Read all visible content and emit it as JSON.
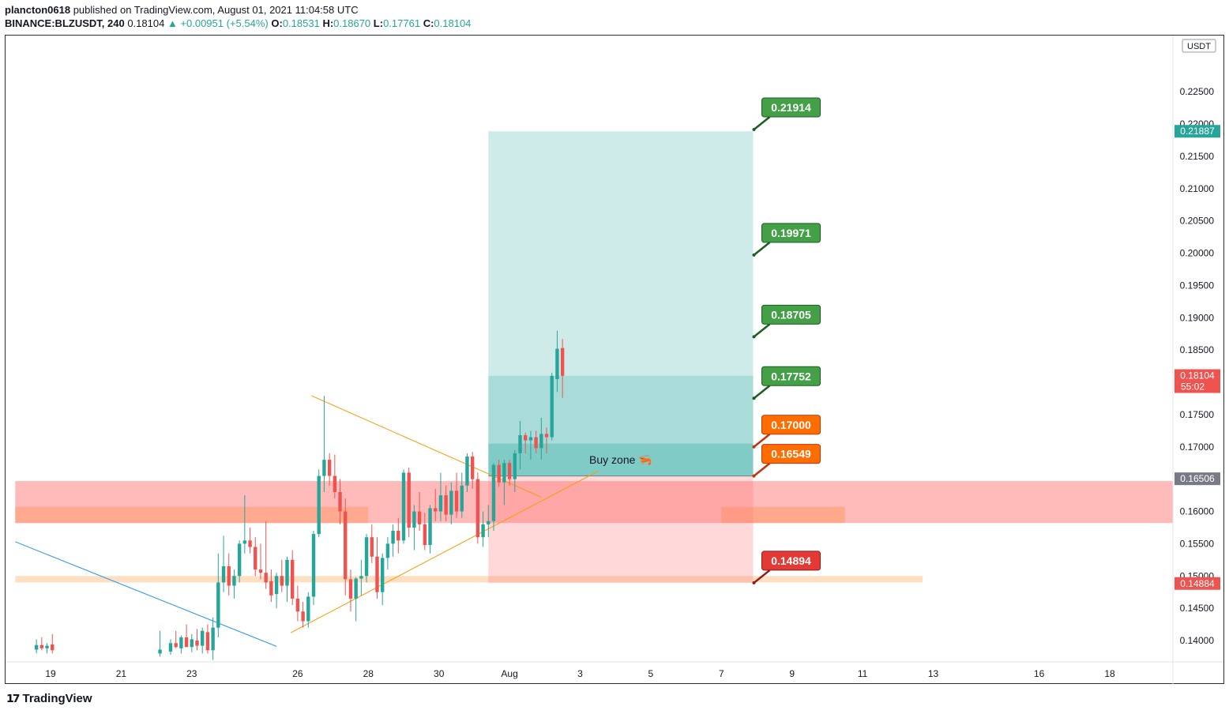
{
  "header": {
    "user": "plancton0618",
    "published": " published on TradingView.com, August 01, 2021 11:04:58 UTC",
    "symbol": "BINANCE:BLZUSDT, 240",
    "last": "0.18104",
    "change": "▲ +0.00951 (+5.54%)",
    "o_label": "O:",
    "o_value": "0.18531",
    "h_label": "H:",
    "h_value": "0.18670",
    "l_label": "L:",
    "l_value": "0.17761",
    "c_label": "C:",
    "c_value": "0.18104"
  },
  "footer": {
    "brand": "TradingView",
    "logo_icon": "tradingview-logo-icon"
  },
  "colors": {
    "up": "#26a69a",
    "down": "#ef5350",
    "target": "#43a047",
    "entry": "#ff6d00",
    "stop": "#e53935",
    "triangle": "#ff9800",
    "trend": "#2196f3"
  },
  "chart_data": {
    "type": "candlestick",
    "currency": "USDT",
    "x_ticks": [
      "19",
      "21",
      "23",
      "26",
      "28",
      "30",
      "Aug",
      "3",
      "5",
      "7",
      "9",
      "11",
      "13",
      "16",
      "18"
    ],
    "x_tick_days": [
      19,
      21,
      23,
      26,
      28,
      30,
      32,
      34,
      36,
      38,
      40,
      42,
      44,
      47,
      49
    ],
    "y_ticks": [
      "0.14000",
      "0.14500",
      "0.15000",
      "0.15500",
      "0.16000",
      "0.16500",
      "0.17000",
      "0.17500",
      "0.18000",
      "0.18500",
      "0.19000",
      "0.19500",
      "0.20000",
      "0.20500",
      "0.21000",
      "0.21500",
      "0.22000",
      "0.22500"
    ],
    "ylim": [
      0.1367,
      0.2337
    ],
    "price_labels": [
      {
        "text": "0.21887",
        "price": 0.21887,
        "color": "#26a69a"
      },
      {
        "text": "0.18104",
        "sub": "55:02",
        "price": 0.18104,
        "color": "#ef5350"
      },
      {
        "text": "0.16506",
        "price": 0.16506,
        "color": "#787b86"
      },
      {
        "text": "0.14884",
        "price": 0.14884,
        "color": "#ef5350"
      }
    ],
    "level_callouts": [
      {
        "text": "0.21914",
        "price": 0.21914,
        "kind": "target"
      },
      {
        "text": "0.19971",
        "price": 0.19971,
        "kind": "target"
      },
      {
        "text": "0.18705",
        "price": 0.18705,
        "kind": "target"
      },
      {
        "text": "0.17752",
        "price": 0.17752,
        "kind": "target"
      },
      {
        "text": "0.17000",
        "price": 0.17,
        "kind": "entry"
      },
      {
        "text": "0.16549",
        "price": 0.16549,
        "kind": "entry"
      },
      {
        "text": "0.14894",
        "price": 0.14894,
        "kind": "stop"
      }
    ],
    "buy_zone": {
      "label": "Buy zone 🦐",
      "from": 0.16549,
      "to": 0.1705
    },
    "zones": [
      {
        "name": "support-zone",
        "from": 0.1582,
        "to": 0.1647,
        "x0": 18.0,
        "x1": 51.4,
        "color": "rgba(255,118,118,0.5)"
      },
      {
        "name": "support-core",
        "from": 0.1582,
        "to": 0.1607,
        "x0": 18.0,
        "x1": 28.0,
        "color": "rgba(255,153,102,0.5)"
      },
      {
        "name": "support-core-ext",
        "from": 0.1582,
        "to": 0.1607,
        "x0": 38.0,
        "x1": 41.5,
        "color": "rgba(255,153,102,0.55)"
      },
      {
        "name": "low-zone",
        "from": 0.149,
        "to": 0.15,
        "x0": 18.0,
        "x1": 43.7,
        "color": "rgba(255,183,120,0.45)"
      }
    ],
    "position": {
      "x0": 31.4,
      "x1": 38.9,
      "entry": 0.16549,
      "target": 0.21887,
      "stop": 0.14894,
      "mid_band_top": 0.181
    },
    "trendlines": [
      {
        "name": "triangle-upper",
        "x": [
          26.4,
          32.9
        ],
        "y": [
          0.1779,
          0.1622
        ],
        "color": "#ff9800"
      },
      {
        "name": "triangle-lower",
        "x": [
          25.8,
          34.5
        ],
        "y": [
          0.1412,
          0.1662
        ],
        "color": "#ff9800"
      },
      {
        "name": "downtrend",
        "x": [
          18.0,
          25.4
        ],
        "y": [
          0.1553,
          0.1391
        ],
        "color": "#2196f3"
      }
    ],
    "candles": [
      {
        "x": 18.6,
        "o": 0.1386,
        "h": 0.1402,
        "l": 0.138,
        "c": 0.1393
      },
      {
        "x": 18.75,
        "o": 0.1393,
        "h": 0.1405,
        "l": 0.1385,
        "c": 0.1388
      },
      {
        "x": 18.9,
        "o": 0.1388,
        "h": 0.1396,
        "l": 0.138,
        "c": 0.1392
      },
      {
        "x": 19.05,
        "o": 0.1394,
        "h": 0.141,
        "l": 0.138,
        "c": 0.1385
      },
      {
        "x": 22.1,
        "o": 0.138,
        "h": 0.1415,
        "l": 0.1375,
        "c": 0.1386
      },
      {
        "x": 22.4,
        "o": 0.1383,
        "h": 0.1402,
        "l": 0.1378,
        "c": 0.1396
      },
      {
        "x": 22.55,
        "o": 0.1396,
        "h": 0.1415,
        "l": 0.1388,
        "c": 0.139
      },
      {
        "x": 22.7,
        "o": 0.1388,
        "h": 0.1408,
        "l": 0.138,
        "c": 0.1405
      },
      {
        "x": 22.85,
        "o": 0.1405,
        "h": 0.1425,
        "l": 0.1395,
        "c": 0.139
      },
      {
        "x": 23.0,
        "o": 0.139,
        "h": 0.141,
        "l": 0.1382,
        "c": 0.1402
      },
      {
        "x": 23.15,
        "o": 0.14,
        "h": 0.1418,
        "l": 0.1385,
        "c": 0.1392
      },
      {
        "x": 23.3,
        "o": 0.1392,
        "h": 0.142,
        "l": 0.138,
        "c": 0.1415
      },
      {
        "x": 23.45,
        "o": 0.1413,
        "h": 0.1425,
        "l": 0.138,
        "c": 0.1385
      },
      {
        "x": 23.6,
        "o": 0.1385,
        "h": 0.1436,
        "l": 0.137,
        "c": 0.142
      },
      {
        "x": 23.75,
        "o": 0.142,
        "h": 0.1535,
        "l": 0.1405,
        "c": 0.149
      },
      {
        "x": 23.9,
        "o": 0.149,
        "h": 0.1562,
        "l": 0.1475,
        "c": 0.1515
      },
      {
        "x": 24.05,
        "o": 0.1515,
        "h": 0.1535,
        "l": 0.147,
        "c": 0.1485
      },
      {
        "x": 24.2,
        "o": 0.1485,
        "h": 0.151,
        "l": 0.1465,
        "c": 0.15
      },
      {
        "x": 24.35,
        "o": 0.15,
        "h": 0.1555,
        "l": 0.149,
        "c": 0.155
      },
      {
        "x": 24.5,
        "o": 0.155,
        "h": 0.1625,
        "l": 0.1535,
        "c": 0.1555
      },
      {
        "x": 24.65,
        "o": 0.1555,
        "h": 0.1575,
        "l": 0.1535,
        "c": 0.1545
      },
      {
        "x": 24.8,
        "o": 0.1545,
        "h": 0.156,
        "l": 0.15,
        "c": 0.151
      },
      {
        "x": 24.95,
        "o": 0.151,
        "h": 0.155,
        "l": 0.1495,
        "c": 0.1505
      },
      {
        "x": 25.1,
        "o": 0.1505,
        "h": 0.1585,
        "l": 0.148,
        "c": 0.149
      },
      {
        "x": 25.25,
        "o": 0.1492,
        "h": 0.151,
        "l": 0.146,
        "c": 0.147
      },
      {
        "x": 25.4,
        "o": 0.1472,
        "h": 0.1505,
        "l": 0.145,
        "c": 0.15
      },
      {
        "x": 25.55,
        "o": 0.15,
        "h": 0.1525,
        "l": 0.1475,
        "c": 0.1485
      },
      {
        "x": 25.7,
        "o": 0.1485,
        "h": 0.153,
        "l": 0.146,
        "c": 0.1525
      },
      {
        "x": 25.85,
        "o": 0.1525,
        "h": 0.154,
        "l": 0.1455,
        "c": 0.1465
      },
      {
        "x": 26.0,
        "o": 0.1465,
        "h": 0.1485,
        "l": 0.143,
        "c": 0.1445
      },
      {
        "x": 26.15,
        "o": 0.1445,
        "h": 0.146,
        "l": 0.142,
        "c": 0.143
      },
      {
        "x": 26.3,
        "o": 0.143,
        "h": 0.1475,
        "l": 0.142,
        "c": 0.1468
      },
      {
        "x": 26.45,
        "o": 0.1468,
        "h": 0.157,
        "l": 0.1455,
        "c": 0.1565
      },
      {
        "x": 26.6,
        "o": 0.1565,
        "h": 0.1665,
        "l": 0.156,
        "c": 0.1655
      },
      {
        "x": 26.75,
        "o": 0.1655,
        "h": 0.1779,
        "l": 0.163,
        "c": 0.168
      },
      {
        "x": 26.9,
        "o": 0.168,
        "h": 0.169,
        "l": 0.164,
        "c": 0.1655
      },
      {
        "x": 27.05,
        "o": 0.1655,
        "h": 0.1688,
        "l": 0.162,
        "c": 0.163
      },
      {
        "x": 27.2,
        "o": 0.163,
        "h": 0.165,
        "l": 0.158,
        "c": 0.16
      },
      {
        "x": 27.35,
        "o": 0.16,
        "h": 0.162,
        "l": 0.147,
        "c": 0.1495
      },
      {
        "x": 27.5,
        "o": 0.1495,
        "h": 0.151,
        "l": 0.1445,
        "c": 0.1465
      },
      {
        "x": 27.65,
        "o": 0.1465,
        "h": 0.1498,
        "l": 0.143,
        "c": 0.1496
      },
      {
        "x": 27.8,
        "o": 0.1496,
        "h": 0.1525,
        "l": 0.147,
        "c": 0.15
      },
      {
        "x": 27.95,
        "o": 0.15,
        "h": 0.1565,
        "l": 0.149,
        "c": 0.156
      },
      {
        "x": 28.1,
        "o": 0.156,
        "h": 0.158,
        "l": 0.152,
        "c": 0.153
      },
      {
        "x": 28.25,
        "o": 0.153,
        "h": 0.156,
        "l": 0.1465,
        "c": 0.1475
      },
      {
        "x": 28.4,
        "o": 0.1475,
        "h": 0.1535,
        "l": 0.1455,
        "c": 0.1528
      },
      {
        "x": 28.55,
        "o": 0.1528,
        "h": 0.156,
        "l": 0.151,
        "c": 0.155
      },
      {
        "x": 28.7,
        "o": 0.155,
        "h": 0.158,
        "l": 0.153,
        "c": 0.157
      },
      {
        "x": 28.85,
        "o": 0.157,
        "h": 0.159,
        "l": 0.1535,
        "c": 0.1555
      },
      {
        "x": 29.0,
        "o": 0.1555,
        "h": 0.1665,
        "l": 0.155,
        "c": 0.166
      },
      {
        "x": 29.15,
        "o": 0.166,
        "h": 0.1668,
        "l": 0.156,
        "c": 0.1575
      },
      {
        "x": 29.3,
        "o": 0.1575,
        "h": 0.161,
        "l": 0.154,
        "c": 0.16
      },
      {
        "x": 29.45,
        "o": 0.16,
        "h": 0.163,
        "l": 0.157,
        "c": 0.158
      },
      {
        "x": 29.6,
        "o": 0.158,
        "h": 0.1598,
        "l": 0.154,
        "c": 0.1548
      },
      {
        "x": 29.75,
        "o": 0.1548,
        "h": 0.161,
        "l": 0.1535,
        "c": 0.1605
      },
      {
        "x": 29.9,
        "o": 0.1605,
        "h": 0.1635,
        "l": 0.1585,
        "c": 0.16
      },
      {
        "x": 30.05,
        "o": 0.16,
        "h": 0.166,
        "l": 0.1585,
        "c": 0.1625
      },
      {
        "x": 30.2,
        "o": 0.1625,
        "h": 0.164,
        "l": 0.1585,
        "c": 0.1595
      },
      {
        "x": 30.35,
        "o": 0.1595,
        "h": 0.1645,
        "l": 0.158,
        "c": 0.1632
      },
      {
        "x": 30.5,
        "o": 0.1632,
        "h": 0.166,
        "l": 0.159,
        "c": 0.16
      },
      {
        "x": 30.65,
        "o": 0.16,
        "h": 0.166,
        "l": 0.159,
        "c": 0.164
      },
      {
        "x": 30.8,
        "o": 0.164,
        "h": 0.169,
        "l": 0.163,
        "c": 0.1685
      },
      {
        "x": 30.95,
        "o": 0.1685,
        "h": 0.1692,
        "l": 0.1635,
        "c": 0.165
      },
      {
        "x": 31.1,
        "o": 0.165,
        "h": 0.166,
        "l": 0.155,
        "c": 0.156
      },
      {
        "x": 31.25,
        "o": 0.156,
        "h": 0.16,
        "l": 0.1545,
        "c": 0.158
      },
      {
        "x": 31.4,
        "o": 0.158,
        "h": 0.161,
        "l": 0.156,
        "c": 0.1585
      },
      {
        "x": 31.55,
        "o": 0.1585,
        "h": 0.1675,
        "l": 0.157,
        "c": 0.1672
      },
      {
        "x": 31.7,
        "o": 0.1672,
        "h": 0.168,
        "l": 0.1638,
        "c": 0.1645
      },
      {
        "x": 31.85,
        "o": 0.1645,
        "h": 0.168,
        "l": 0.161,
        "c": 0.1675
      },
      {
        "x": 32.0,
        "o": 0.1675,
        "h": 0.168,
        "l": 0.164,
        "c": 0.165
      },
      {
        "x": 32.15,
        "o": 0.165,
        "h": 0.1695,
        "l": 0.163,
        "c": 0.169
      },
      {
        "x": 32.3,
        "o": 0.169,
        "h": 0.174,
        "l": 0.1665,
        "c": 0.1718
      },
      {
        "x": 32.45,
        "o": 0.1718,
        "h": 0.1722,
        "l": 0.169,
        "c": 0.171
      },
      {
        "x": 32.6,
        "o": 0.171,
        "h": 0.1725,
        "l": 0.168,
        "c": 0.1715
      },
      {
        "x": 32.75,
        "o": 0.1715,
        "h": 0.1725,
        "l": 0.169,
        "c": 0.1698
      },
      {
        "x": 32.9,
        "o": 0.1698,
        "h": 0.1745,
        "l": 0.168,
        "c": 0.172
      },
      {
        "x": 33.05,
        "o": 0.172,
        "h": 0.173,
        "l": 0.169,
        "c": 0.1715
      },
      {
        "x": 33.2,
        "o": 0.1715,
        "h": 0.1815,
        "l": 0.171,
        "c": 0.181
      },
      {
        "x": 33.35,
        "o": 0.1805,
        "h": 0.188,
        "l": 0.1785,
        "c": 0.1852
      },
      {
        "x": 33.5,
        "o": 0.1853,
        "h": 0.1867,
        "l": 0.1776,
        "c": 0.181
      }
    ]
  }
}
